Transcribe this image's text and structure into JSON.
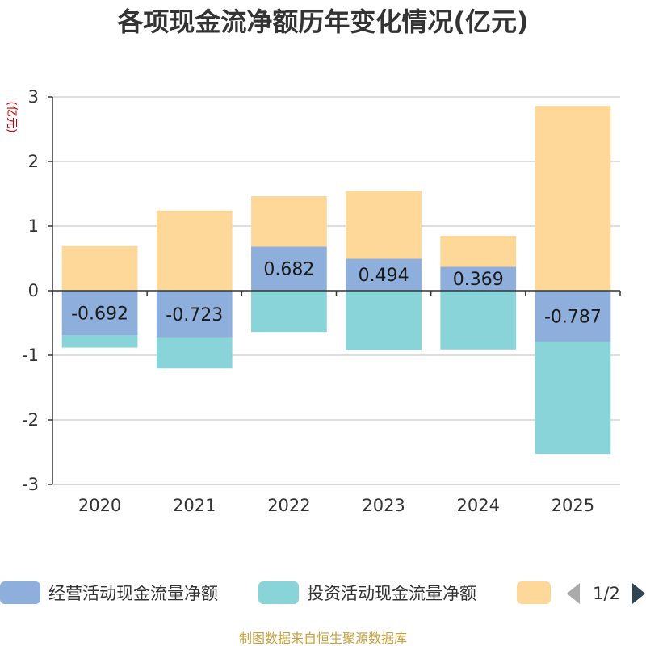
{
  "chart_data": {
    "type": "bar",
    "stacked": true,
    "title": "各项现金流净额历年变化情况(亿元)",
    "ylabel": "(亿元)",
    "xlabel": "",
    "categories": [
      "2020",
      "2021",
      "2022",
      "2023",
      "2024",
      "2025"
    ],
    "ylim": [
      -3,
      3
    ],
    "yticks": [
      -3,
      -2,
      -1,
      0,
      1,
      2,
      3
    ],
    "grid": true,
    "series": [
      {
        "name": "经营活动现金流量净额",
        "color": "#8eaedb",
        "values": [
          -0.692,
          -0.723,
          0.682,
          0.494,
          0.369,
          -0.787
        ],
        "labels": [
          "-0.692",
          "-0.723",
          "0.682",
          "0.494",
          "0.369",
          "-0.787"
        ]
      },
      {
        "name": "投资活动现金流量净额",
        "color": "#88d4d8",
        "values": [
          -0.19,
          -0.48,
          -0.64,
          -0.92,
          -0.91,
          -1.74
        ]
      },
      {
        "name": "",
        "color": "#fed898",
        "values": [
          0.69,
          1.24,
          0.78,
          1.05,
          0.48,
          2.86
        ]
      }
    ],
    "legend": {
      "position": "bottom",
      "page": "1/2"
    }
  },
  "footer": "制图数据来自恒生聚源数据库"
}
